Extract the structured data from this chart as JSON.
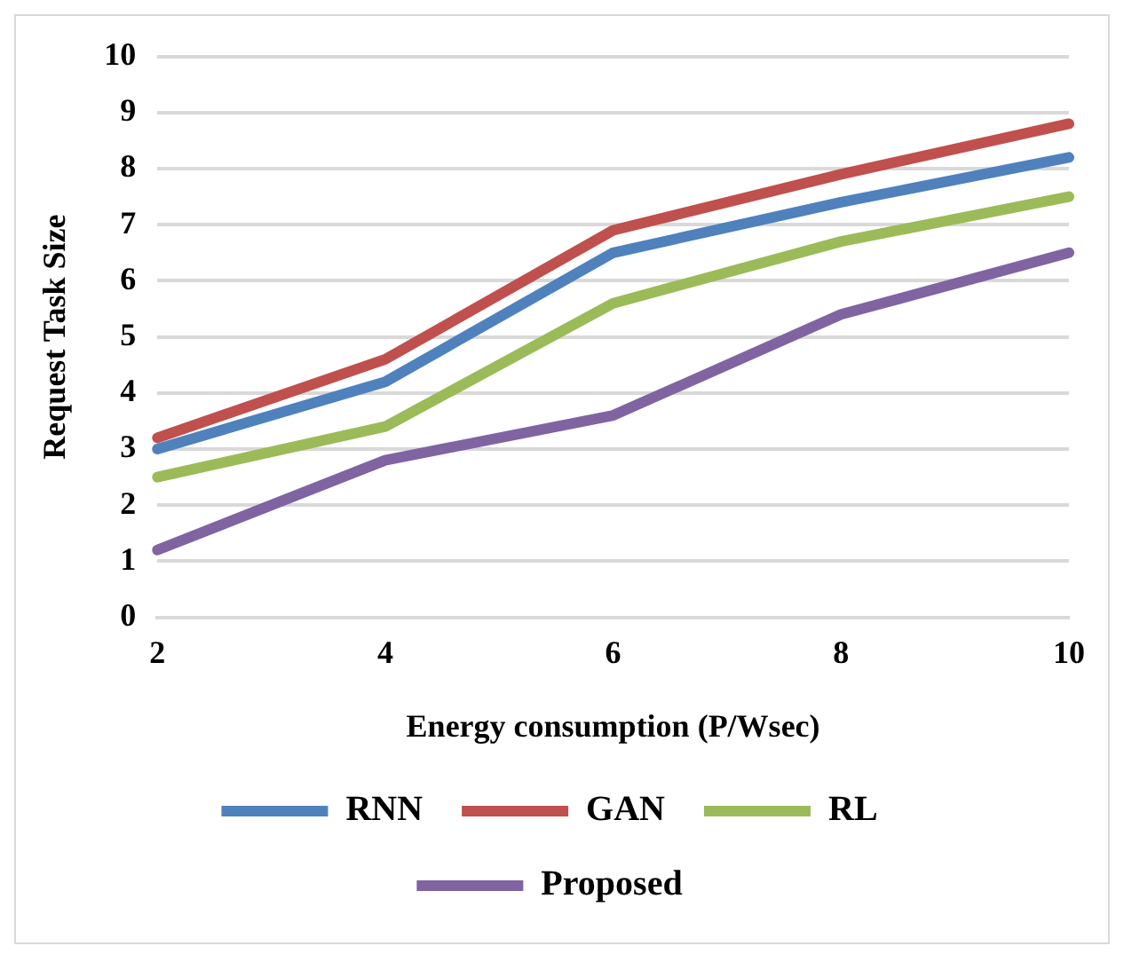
{
  "chart_data": {
    "type": "line",
    "xlabel": "Energy consumption (P/Wsec)",
    "ylabel": "Request Task Size",
    "categories": [
      "2",
      "4",
      "6",
      "8",
      "10"
    ],
    "series": [
      {
        "name": "RNN",
        "color": "#4f81bd",
        "values": [
          3.0,
          4.2,
          6.5,
          7.4,
          8.2
        ]
      },
      {
        "name": "GAN",
        "color": "#c0504d",
        "values": [
          3.2,
          4.6,
          6.9,
          7.9,
          8.8
        ]
      },
      {
        "name": "RL",
        "color": "#9bbb59",
        "values": [
          2.5,
          3.4,
          5.6,
          6.7,
          7.5
        ]
      },
      {
        "name": "Proposed",
        "color": "#8064a2",
        "values": [
          1.2,
          2.8,
          3.6,
          5.4,
          6.5
        ]
      }
    ],
    "ylim": [
      0,
      10
    ],
    "yticks": [
      0,
      1,
      2,
      3,
      4,
      5,
      6,
      7,
      8,
      9,
      10
    ],
    "grid": "y",
    "legend": "bottom",
    "marker": "none",
    "line_style": "solid"
  }
}
